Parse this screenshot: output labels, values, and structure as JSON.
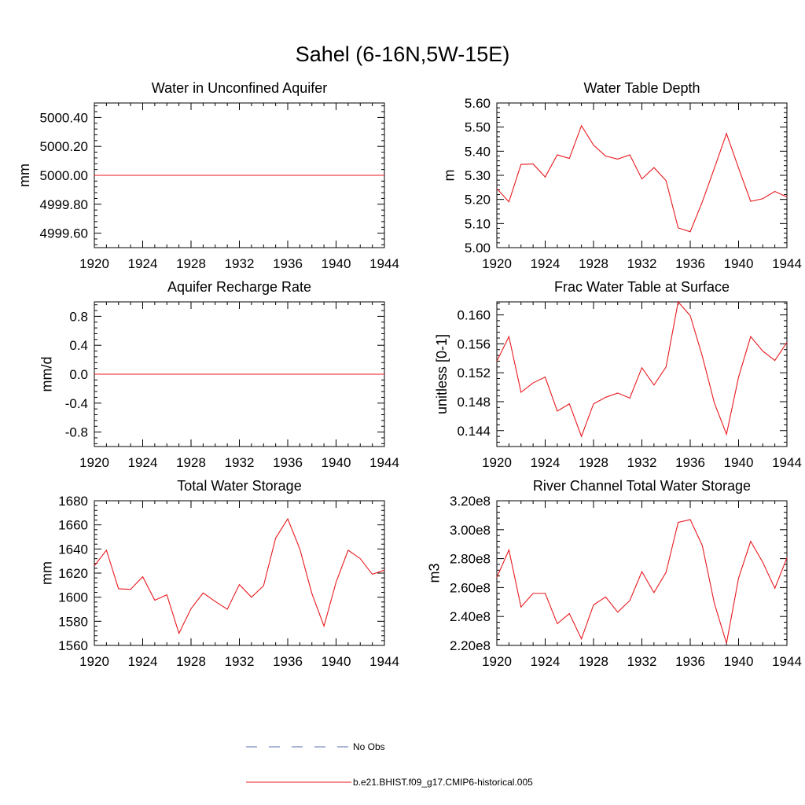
{
  "page": {
    "title": "Sahel (6-16N,5W-15E)"
  },
  "colors": {
    "model": "#e8191e",
    "obs": "#5a6fb0",
    "axis": "#000000"
  },
  "legend": {
    "entries": [
      {
        "label": "No Obs",
        "style": "dashed",
        "color": "#5a6fb0"
      },
      {
        "label": "b.e21.BHIST.f09_g17.CMIP6-historical.005",
        "style": "solid",
        "color": "#e8191e"
      }
    ]
  },
  "chart_data": [
    {
      "type": "line",
      "title": "Water in Unconfined Aquifer",
      "ylabel": "mm",
      "xlim": [
        1920,
        1944
      ],
      "ylim": [
        4999.5,
        5000.5
      ],
      "xticks": [
        1920,
        1924,
        1928,
        1932,
        1936,
        1940,
        1944
      ],
      "xtick_labels": [
        "1920",
        "1924",
        "1928",
        "1932",
        "1936",
        "1940",
        "1944"
      ],
      "yticks": [
        4999.6,
        4999.8,
        5000.0,
        5000.2,
        5000.4
      ],
      "ytick_labels": [
        "4999.60",
        "4999.80",
        "5000.00",
        "5000.20",
        "5000.40"
      ],
      "x": [
        1920,
        1921,
        1922,
        1923,
        1924,
        1925,
        1926,
        1927,
        1928,
        1929,
        1930,
        1931,
        1932,
        1933,
        1934,
        1935,
        1936,
        1937,
        1938,
        1939,
        1940,
        1941,
        1942,
        1943,
        1944
      ],
      "series": [
        {
          "name": "b.e21.BHIST.f09_g17.CMIP6-historical.005",
          "values": [
            5000,
            5000,
            5000,
            5000,
            5000,
            5000,
            5000,
            5000,
            5000,
            5000,
            5000,
            5000,
            5000,
            5000,
            5000,
            5000,
            5000,
            5000,
            5000,
            5000,
            5000,
            5000,
            5000,
            5000,
            5000
          ]
        }
      ]
    },
    {
      "type": "line",
      "title": "Water Table Depth",
      "ylabel": "m",
      "xlim": [
        1920,
        1944
      ],
      "ylim": [
        5.0,
        5.6
      ],
      "xticks": [
        1920,
        1924,
        1928,
        1932,
        1936,
        1940,
        1944
      ],
      "xtick_labels": [
        "1920",
        "1924",
        "1928",
        "1932",
        "1936",
        "1940",
        "1944"
      ],
      "yticks": [
        5.0,
        5.1,
        5.2,
        5.3,
        5.4,
        5.5,
        5.6
      ],
      "ytick_labels": [
        "5.00",
        "5.10",
        "5.20",
        "5.30",
        "5.40",
        "5.50",
        "5.60"
      ],
      "x": [
        1920,
        1921,
        1922,
        1923,
        1924,
        1925,
        1926,
        1927,
        1928,
        1929,
        1930,
        1931,
        1932,
        1933,
        1934,
        1935,
        1936,
        1937,
        1938,
        1939,
        1940,
        1941,
        1942,
        1943,
        1944
      ],
      "series": [
        {
          "name": "b.e21.BHIST.f09_g17.CMIP6-historical.005",
          "values": [
            5.245,
            5.19,
            5.345,
            5.347,
            5.293,
            5.385,
            5.37,
            5.506,
            5.425,
            5.38,
            5.367,
            5.385,
            5.285,
            5.332,
            5.278,
            5.082,
            5.066,
            5.19,
            5.33,
            5.473,
            5.33,
            5.192,
            5.203,
            5.233,
            5.21
          ]
        }
      ]
    },
    {
      "type": "line",
      "title": "Aquifer Recharge Rate",
      "ylabel": "mm/d",
      "xlim": [
        1920,
        1944
      ],
      "ylim": [
        -1.0,
        1.0
      ],
      "xticks": [
        1920,
        1924,
        1928,
        1932,
        1936,
        1940,
        1944
      ],
      "xtick_labels": [
        "1920",
        "1924",
        "1928",
        "1932",
        "1936",
        "1940",
        "1944"
      ],
      "yticks": [
        -0.8,
        -0.4,
        0.0,
        0.4,
        0.8
      ],
      "ytick_labels": [
        "-0.8",
        "-0.4",
        "0.0",
        "0.4",
        "0.8"
      ],
      "x": [
        1920,
        1921,
        1922,
        1923,
        1924,
        1925,
        1926,
        1927,
        1928,
        1929,
        1930,
        1931,
        1932,
        1933,
        1934,
        1935,
        1936,
        1937,
        1938,
        1939,
        1940,
        1941,
        1942,
        1943,
        1944
      ],
      "series": [
        {
          "name": "b.e21.BHIST.f09_g17.CMIP6-historical.005",
          "values": [
            0,
            0,
            0,
            0,
            0,
            0,
            0,
            0,
            0,
            0,
            0,
            0,
            0,
            0,
            0,
            0,
            0,
            0,
            0,
            0,
            0,
            0,
            0,
            0,
            0
          ]
        }
      ]
    },
    {
      "type": "line",
      "title": "Frac Water Table at Surface",
      "ylabel": "unitless [0-1]",
      "xlim": [
        1920,
        1944
      ],
      "ylim": [
        0.1418,
        0.1618
      ],
      "xticks": [
        1920,
        1924,
        1928,
        1932,
        1936,
        1940,
        1944
      ],
      "xtick_labels": [
        "1920",
        "1924",
        "1928",
        "1932",
        "1936",
        "1940",
        "1944"
      ],
      "yticks": [
        0.144,
        0.148,
        0.152,
        0.156,
        0.16
      ],
      "ytick_labels": [
        "0.144",
        "0.148",
        "0.152",
        "0.156",
        "0.160"
      ],
      "x": [
        1920,
        1921,
        1922,
        1923,
        1924,
        1925,
        1926,
        1927,
        1928,
        1929,
        1930,
        1931,
        1932,
        1933,
        1934,
        1935,
        1936,
        1937,
        1938,
        1939,
        1940,
        1941,
        1942,
        1943,
        1944
      ],
      "series": [
        {
          "name": "b.e21.BHIST.f09_g17.CMIP6-historical.005",
          "values": [
            0.1536,
            0.157,
            0.1493,
            0.1506,
            0.1514,
            0.1467,
            0.1477,
            0.1432,
            0.1477,
            0.1486,
            0.1492,
            0.1485,
            0.1527,
            0.1503,
            0.1528,
            0.1618,
            0.1599,
            0.1543,
            0.1478,
            0.1435,
            0.1514,
            0.157,
            0.155,
            0.1537,
            0.1562
          ]
        }
      ]
    },
    {
      "type": "line",
      "title": "Total Water Storage",
      "ylabel": "mm",
      "xlim": [
        1920,
        1944
      ],
      "ylim": [
        1560,
        1680
      ],
      "xticks": [
        1920,
        1924,
        1928,
        1932,
        1936,
        1940,
        1944
      ],
      "xtick_labels": [
        "1920",
        "1924",
        "1928",
        "1932",
        "1936",
        "1940",
        "1944"
      ],
      "yticks": [
        1560,
        1580,
        1600,
        1620,
        1640,
        1660,
        1680
      ],
      "ytick_labels": [
        "1560",
        "1580",
        "1600",
        "1620",
        "1640",
        "1660",
        "1680"
      ],
      "x": [
        1920,
        1921,
        1922,
        1923,
        1924,
        1925,
        1926,
        1927,
        1928,
        1929,
        1930,
        1931,
        1932,
        1933,
        1934,
        1935,
        1936,
        1937,
        1938,
        1939,
        1940,
        1941,
        1942,
        1943,
        1944
      ],
      "series": [
        {
          "name": "b.e21.BHIST.f09_g17.CMIP6-historical.005",
          "values": [
            1626,
            1639,
            1607,
            1606.5,
            1617,
            1597.5,
            1602,
            1570,
            1590.5,
            1603.5,
            1596.5,
            1590,
            1610.5,
            1600,
            1609.5,
            1649,
            1665,
            1640,
            1603,
            1576,
            1612.5,
            1639,
            1632,
            1619,
            1622.5
          ]
        }
      ]
    },
    {
      "type": "line",
      "title": "River Channel Total Water Storage",
      "ylabel": "m3",
      "xlim": [
        1920,
        1944
      ],
      "ylim": [
        220000000,
        320000000
      ],
      "xticks": [
        1920,
        1924,
        1928,
        1932,
        1936,
        1940,
        1944
      ],
      "xtick_labels": [
        "1920",
        "1924",
        "1928",
        "1932",
        "1936",
        "1940",
        "1944"
      ],
      "yticks": [
        220000000,
        240000000,
        260000000,
        280000000,
        300000000,
        320000000
      ],
      "ytick_labels": [
        "2.20e8",
        "2.40e8",
        "2.60e8",
        "2.80e8",
        "3.00e8",
        "3.20e8"
      ],
      "x": [
        1920,
        1921,
        1922,
        1923,
        1924,
        1925,
        1926,
        1927,
        1928,
        1929,
        1930,
        1931,
        1932,
        1933,
        1934,
        1935,
        1936,
        1937,
        1938,
        1939,
        1940,
        1941,
        1942,
        1943,
        1944
      ],
      "series": [
        {
          "name": "b.e21.BHIST.f09_g17.CMIP6-historical.005",
          "values": [
            267000000,
            286000000,
            246500000,
            256000000,
            256000000,
            235000000,
            242000000,
            224500000,
            248000000,
            253500000,
            243000000,
            251000000,
            271000000,
            256500000,
            270500000,
            305000000,
            307000000,
            289000000,
            249000000,
            221500000,
            266500000,
            292000000,
            277500000,
            259500000,
            280500000
          ]
        }
      ]
    }
  ]
}
